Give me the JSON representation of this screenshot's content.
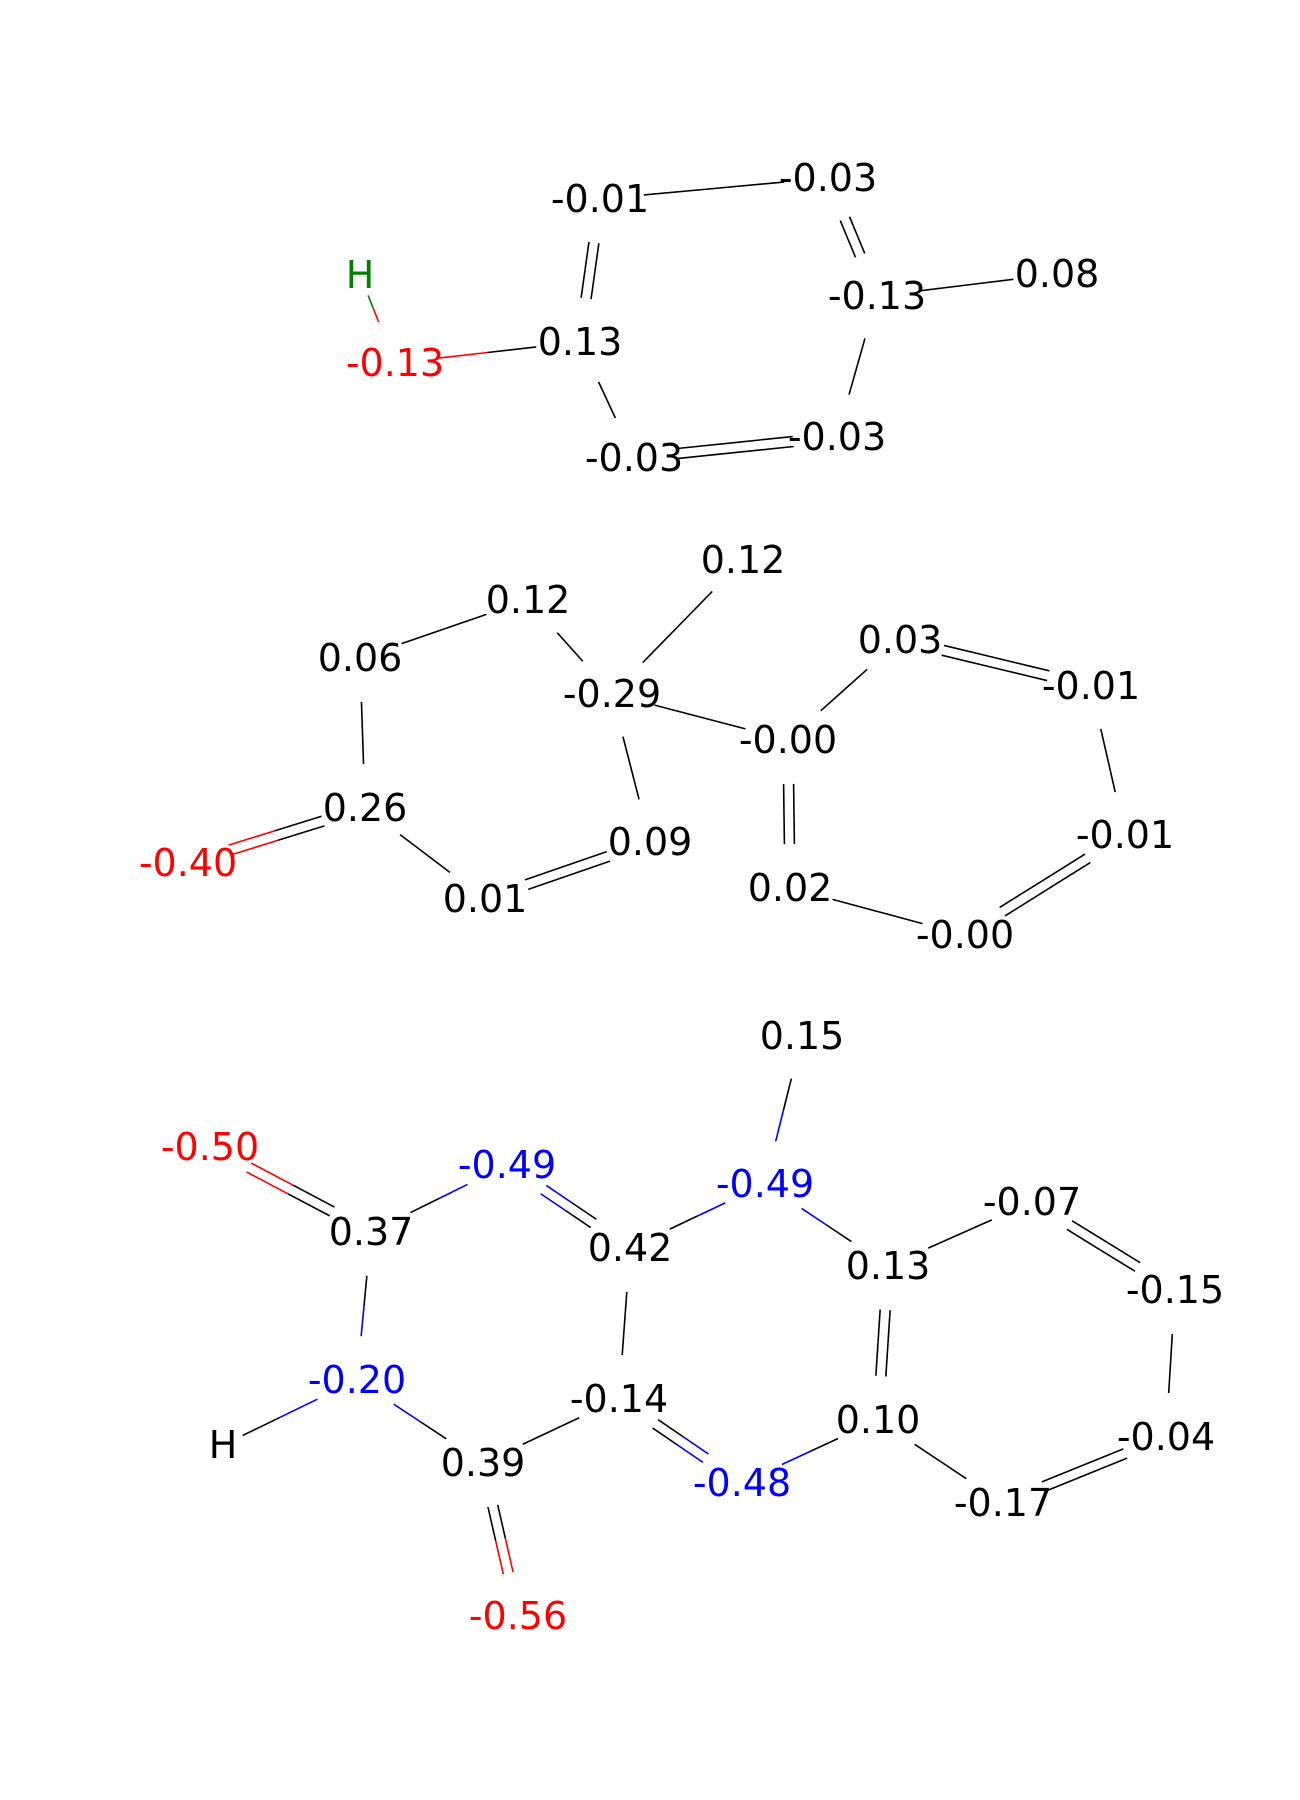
{
  "colors": {
    "carbon": "#000000",
    "oxygen": "#ff0000",
    "nitrogen": "#0000ff",
    "hydrogen_polar": "#008000"
  },
  "molecules": [
    {
      "atoms": [
        {
          "label": "H",
          "element": "H",
          "color": "hydrogen_polar"
        },
        {
          "label": "-0.13",
          "element": "O"
        },
        {
          "label": "0.13",
          "element": "C"
        },
        {
          "label": "-0.01",
          "element": "C"
        },
        {
          "label": "-0.03",
          "element": "C"
        },
        {
          "label": "-0.13",
          "element": "C"
        },
        {
          "label": "0.08",
          "element": "C"
        },
        {
          "label": "-0.03",
          "element": "C"
        },
        {
          "label": "-0.03",
          "element": "C"
        }
      ],
      "bonds": [
        [
          0,
          1,
          1
        ],
        [
          1,
          2,
          1
        ],
        [
          2,
          3,
          2
        ],
        [
          3,
          4,
          1
        ],
        [
          4,
          5,
          2
        ],
        [
          5,
          6,
          1
        ],
        [
          5,
          7,
          1
        ],
        [
          7,
          8,
          2
        ],
        [
          8,
          2,
          1
        ]
      ]
    },
    {
      "atoms": [
        {
          "label": "-0.40",
          "element": "O"
        },
        {
          "label": "0.26",
          "element": "C"
        },
        {
          "label": "0.06",
          "element": "C"
        },
        {
          "label": "0.12",
          "element": "C"
        },
        {
          "label": "-0.29",
          "element": "C"
        },
        {
          "label": "0.12",
          "element": "C"
        },
        {
          "label": "0.09",
          "element": "C"
        },
        {
          "label": "0.01",
          "element": "C"
        },
        {
          "label": "-0.00",
          "element": "C"
        },
        {
          "label": "0.03",
          "element": "C"
        },
        {
          "label": "-0.01",
          "element": "C"
        },
        {
          "label": "-0.01",
          "element": "C"
        },
        {
          "label": "-0.00",
          "element": "C"
        },
        {
          "label": "0.02",
          "element": "C"
        }
      ],
      "bonds": [
        [
          0,
          1,
          2
        ],
        [
          1,
          2,
          1
        ],
        [
          2,
          3,
          1
        ],
        [
          3,
          4,
          1
        ],
        [
          4,
          5,
          1
        ],
        [
          4,
          6,
          1
        ],
        [
          6,
          7,
          2
        ],
        [
          7,
          1,
          1
        ],
        [
          4,
          8,
          1
        ],
        [
          8,
          9,
          1
        ],
        [
          9,
          10,
          2
        ],
        [
          10,
          11,
          1
        ],
        [
          11,
          12,
          2
        ],
        [
          12,
          13,
          1
        ],
        [
          13,
          8,
          2
        ]
      ]
    },
    {
      "atoms": [
        {
          "label": "-0.50",
          "element": "O"
        },
        {
          "label": "0.37",
          "element": "C"
        },
        {
          "label": "-0.49",
          "element": "N"
        },
        {
          "label": "0.42",
          "element": "C"
        },
        {
          "label": "-0.49",
          "element": "N"
        },
        {
          "label": "0.15",
          "element": "C"
        },
        {
          "label": "0.13",
          "element": "C"
        },
        {
          "label": "-0.07",
          "element": "C"
        },
        {
          "label": "-0.15",
          "element": "C"
        },
        {
          "label": "-0.04",
          "element": "C"
        },
        {
          "label": "-0.17",
          "element": "C"
        },
        {
          "label": "0.10",
          "element": "C"
        },
        {
          "label": "-0.48",
          "element": "N"
        },
        {
          "label": "-0.14",
          "element": "C"
        },
        {
          "label": "0.39",
          "element": "C"
        },
        {
          "label": "-0.56",
          "element": "O"
        },
        {
          "label": "-0.20",
          "element": "N"
        },
        {
          "label": "H",
          "element": "H"
        }
      ],
      "bonds": [
        [
          0,
          1,
          2
        ],
        [
          1,
          2,
          1
        ],
        [
          2,
          3,
          2
        ],
        [
          3,
          4,
          1
        ],
        [
          4,
          5,
          1
        ],
        [
          4,
          6,
          1
        ],
        [
          6,
          7,
          1
        ],
        [
          7,
          8,
          2
        ],
        [
          8,
          9,
          1
        ],
        [
          9,
          10,
          2
        ],
        [
          10,
          11,
          1
        ],
        [
          11,
          6,
          2
        ],
        [
          11,
          12,
          1
        ],
        [
          12,
          13,
          2
        ],
        [
          13,
          3,
          1
        ],
        [
          13,
          14,
          1
        ],
        [
          14,
          15,
          2
        ],
        [
          14,
          16,
          1
        ],
        [
          16,
          17,
          1
        ],
        [
          16,
          1,
          1
        ]
      ]
    }
  ]
}
